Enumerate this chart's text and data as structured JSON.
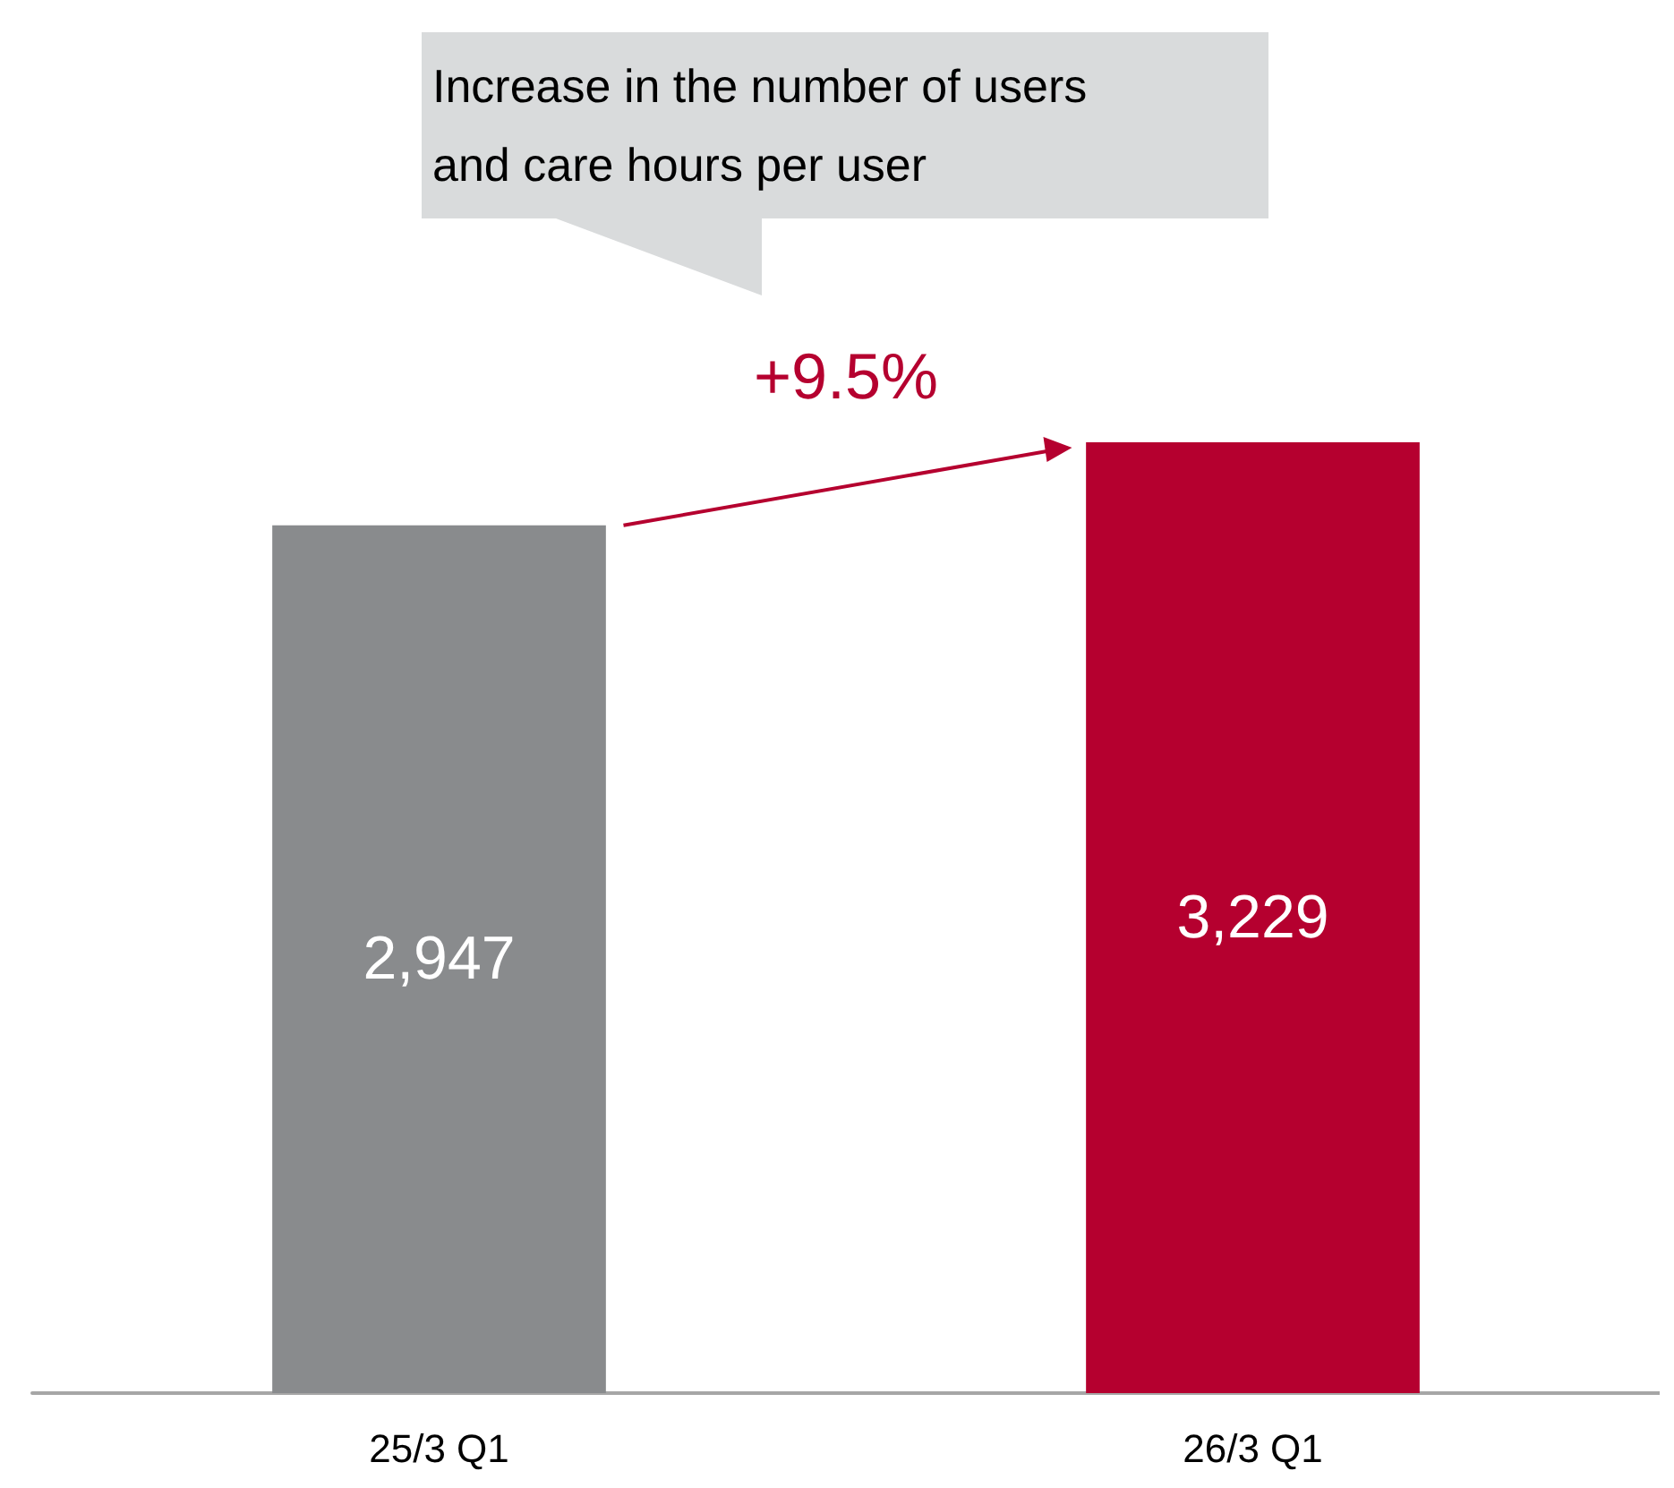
{
  "chart_data": {
    "type": "bar",
    "categories": [
      "25/3 Q1",
      "26/3 Q1"
    ],
    "values": [
      2947,
      3229
    ],
    "colors": [
      "#898b8d",
      "#b5002f"
    ],
    "value_labels": [
      "2,947",
      "3,229"
    ],
    "annotations": [
      "Increase in the number of users\nand care hours per user",
      "+9.5%"
    ]
  }
}
